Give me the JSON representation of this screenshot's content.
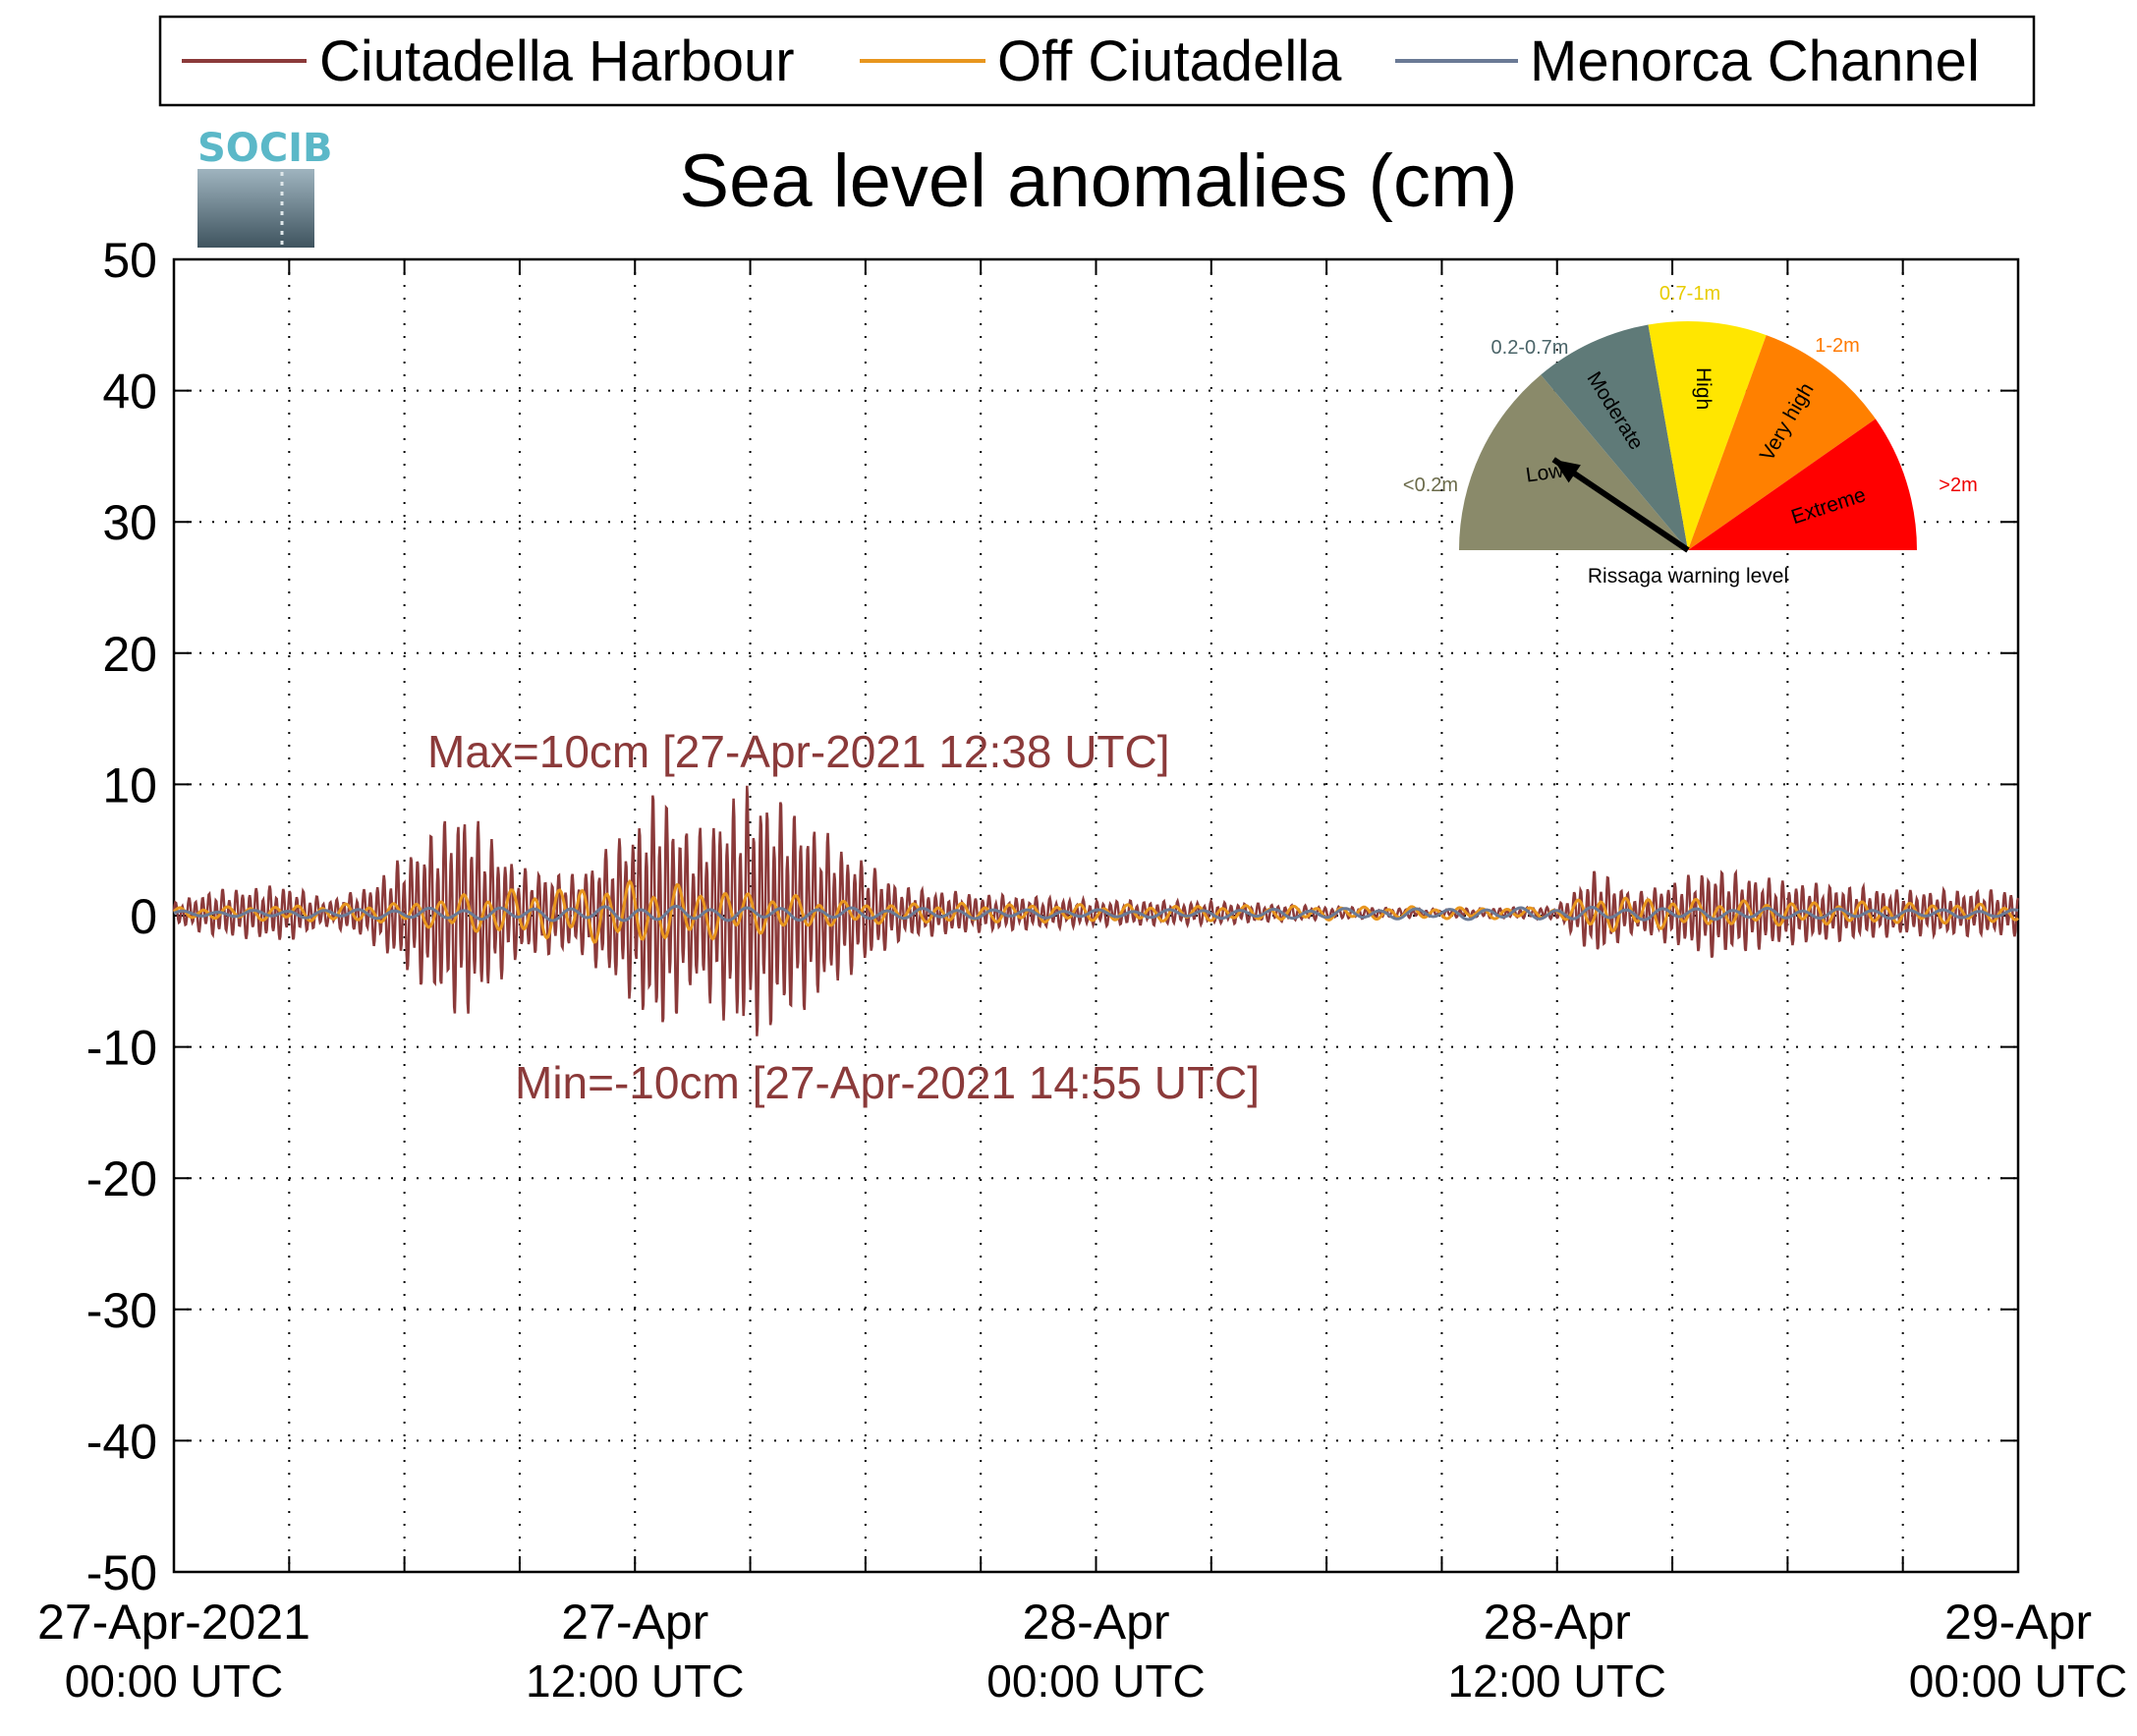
{
  "chart_data": {
    "type": "line",
    "title": "Sea level anomalies (cm)",
    "ylim": [
      -50,
      50
    ],
    "yticks": [
      "50",
      "40",
      "30",
      "20",
      "10",
      "0",
      "-10",
      "-20",
      "-30",
      "-40",
      "-50"
    ],
    "xlim": [
      "2021-04-27T00:00Z",
      "2021-04-29T00:00Z"
    ],
    "xticks": [
      {
        "line1": "27-Apr-2021",
        "line2": "00:00 UTC"
      },
      {
        "line1": "27-Apr",
        "line2": "12:00 UTC"
      },
      {
        "line1": "28-Apr",
        "line2": "00:00 UTC"
      },
      {
        "line1": "28-Apr",
        "line2": "12:00 UTC"
      },
      {
        "line1": "29-Apr",
        "line2": "00:00 UTC"
      }
    ],
    "grid": "dotted",
    "legend_position": "top",
    "series": [
      {
        "name": "Ciutadella Harbour",
        "color": "#8b3a3a",
        "envelope": [
          {
            "t": "2021-04-27T00:00Z",
            "amp": 0.8
          },
          {
            "t": "2021-04-27T01:00Z",
            "amp": 1.8
          },
          {
            "t": "2021-04-27T03:00Z",
            "amp": 2.2
          },
          {
            "t": "2021-04-27T04:00Z",
            "amp": 1.0
          },
          {
            "t": "2021-04-27T05:00Z",
            "amp": 2.0
          },
          {
            "t": "2021-04-27T06:00Z",
            "amp": 4.5
          },
          {
            "t": "2021-04-27T07:30Z",
            "amp": 8.5
          },
          {
            "t": "2021-04-27T09:00Z",
            "amp": 3.5
          },
          {
            "t": "2021-04-27T10:30Z",
            "amp": 3.0
          },
          {
            "t": "2021-04-27T12:00Z",
            "amp": 7.0
          },
          {
            "t": "2021-04-27T12:38Z",
            "amp": 10.0
          },
          {
            "t": "2021-04-27T13:30Z",
            "amp": 6.0
          },
          {
            "t": "2021-04-27T14:55Z",
            "amp": 10.0
          },
          {
            "t": "2021-04-27T16:00Z",
            "amp": 8.5
          },
          {
            "t": "2021-04-27T17:30Z",
            "amp": 5.0
          },
          {
            "t": "2021-04-27T19:00Z",
            "amp": 2.0
          },
          {
            "t": "2021-04-27T21:00Z",
            "amp": 1.5
          },
          {
            "t": "2021-04-28T00:00Z",
            "amp": 1.0
          },
          {
            "t": "2021-04-28T03:00Z",
            "amp": 0.9
          },
          {
            "t": "2021-04-28T06:00Z",
            "amp": 0.5
          },
          {
            "t": "2021-04-28T09:00Z",
            "amp": 0.3
          },
          {
            "t": "2021-04-28T12:00Z",
            "amp": 0.5
          },
          {
            "t": "2021-04-28T13:00Z",
            "amp": 3.5
          },
          {
            "t": "2021-04-28T14:00Z",
            "amp": 1.5
          },
          {
            "t": "2021-04-28T15:00Z",
            "amp": 2.5
          },
          {
            "t": "2021-04-28T16:00Z",
            "amp": 3.5
          },
          {
            "t": "2021-04-28T18:00Z",
            "amp": 2.5
          },
          {
            "t": "2021-04-28T21:00Z",
            "amp": 1.8
          },
          {
            "t": "2021-04-29T00:00Z",
            "amp": 1.8
          }
        ]
      },
      {
        "name": "Off Ciutadella",
        "color": "#e8961e",
        "envelope": [
          {
            "t": "2021-04-27T00:00Z",
            "amp": 0.4
          },
          {
            "t": "2021-04-27T06:00Z",
            "amp": 0.8
          },
          {
            "t": "2021-04-27T07:30Z",
            "amp": 1.5
          },
          {
            "t": "2021-04-27T12:00Z",
            "amp": 2.5
          },
          {
            "t": "2021-04-27T14:00Z",
            "amp": 2.0
          },
          {
            "t": "2021-04-27T18:00Z",
            "amp": 0.8
          },
          {
            "t": "2021-04-28T12:00Z",
            "amp": 0.4
          },
          {
            "t": "2021-04-28T13:00Z",
            "amp": 1.5
          },
          {
            "t": "2021-04-28T16:00Z",
            "amp": 1.0
          },
          {
            "t": "2021-04-29T00:00Z",
            "amp": 0.7
          }
        ]
      },
      {
        "name": "Menorca Channel",
        "color": "#6a7a95",
        "envelope": [
          {
            "t": "2021-04-27T00:00Z",
            "amp": 0.2
          },
          {
            "t": "2021-04-27T12:00Z",
            "amp": 0.6
          },
          {
            "t": "2021-04-28T00:00Z",
            "amp": 0.3
          },
          {
            "t": "2021-04-28T13:00Z",
            "amp": 0.5
          },
          {
            "t": "2021-04-29T00:00Z",
            "amp": 0.3
          }
        ]
      }
    ],
    "annotations": {
      "max": "Max=10cm [27-Apr-2021 12:38 UTC]",
      "min": "Min=-10cm [27-Apr-2021 14:55 UTC]"
    }
  },
  "logo": {
    "text": "SOCIB"
  },
  "gauge": {
    "caption": "Rissaga warning level",
    "level": "Low",
    "sectors": [
      {
        "name": "Low",
        "range": "<0.2m",
        "color": "#8a8a6a",
        "range_color": "#6b6b4a"
      },
      {
        "name": "Moderate",
        "range": "0.2-0.7m",
        "color": "#5f7a78",
        "range_color": "#4a6468"
      },
      {
        "name": "High",
        "range": "0.7-1m",
        "color": "#ffe600",
        "range_color": "#e8cc00"
      },
      {
        "name": "Very high",
        "range": "1-2m",
        "color": "#ff8000",
        "range_color": "#ff7a00"
      },
      {
        "name": "Extreme",
        "range": ">2m",
        "color": "#ff0000",
        "range_color": "#ee0000"
      }
    ]
  }
}
